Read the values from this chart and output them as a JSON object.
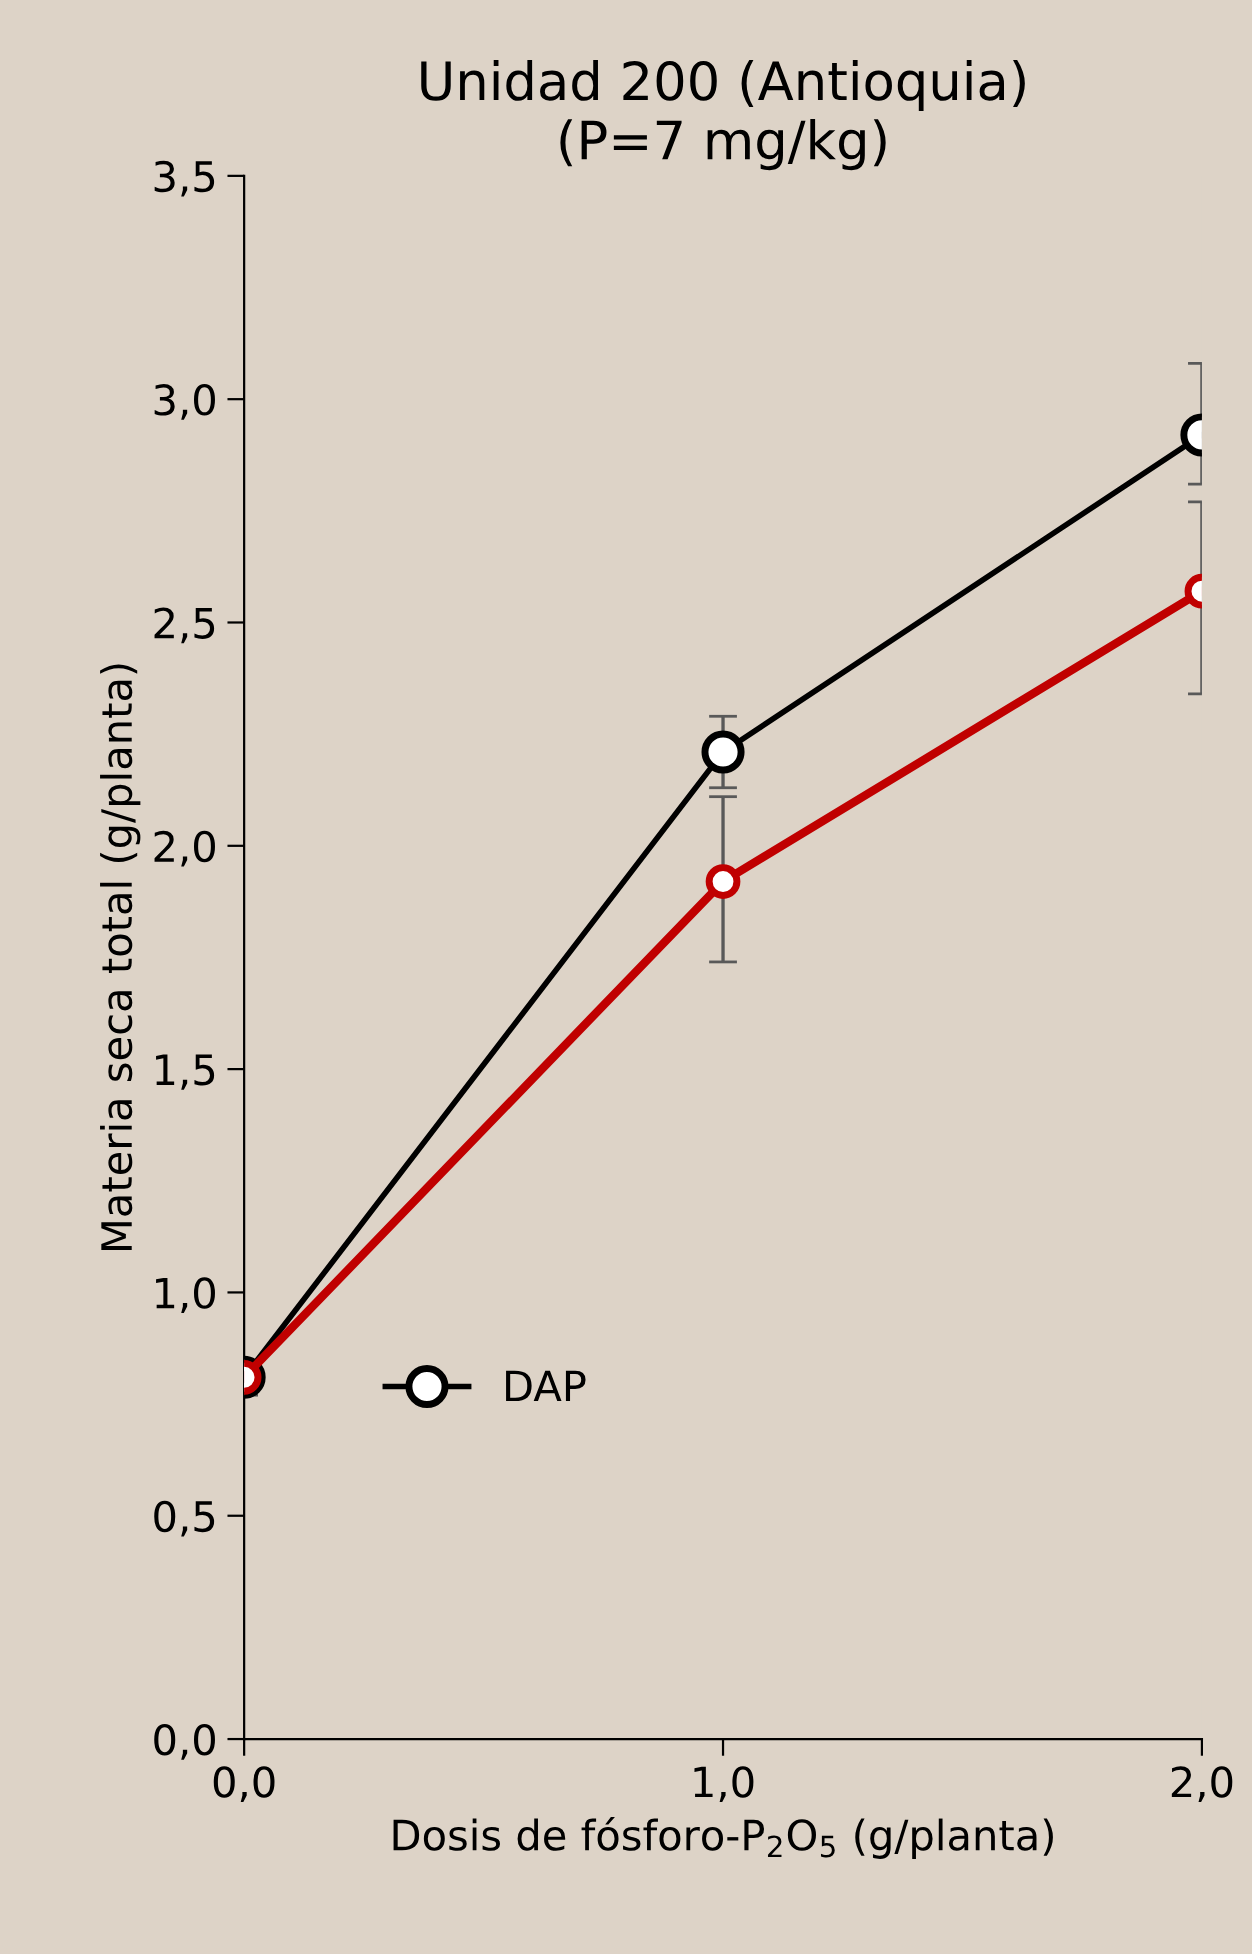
{
  "chart_data": {
    "type": "line",
    "title": "Unidad 200 (Antioquia)\n(P=7 mg/kg)",
    "xlabel": "Dosis de fósforo-P$_{2}$O$_{5}$ (g/planta)",
    "ylabel": "Materia seca total (g/planta)",
    "x": [
      0,
      1,
      2
    ],
    "series": [
      {
        "name": "DAP",
        "color": "#000000",
        "values": [
          0.81,
          2.21,
          2.92
        ],
        "errors": [
          [
            0.78,
            0.84
          ],
          [
            2.13,
            2.29
          ],
          [
            2.81,
            3.08
          ]
        ]
      },
      {
        "color": "#c00000",
        "values": [
          0.81,
          1.92,
          2.57
        ],
        "errors": [
          [
            0.77,
            0.84
          ],
          [
            1.74,
            2.11
          ],
          [
            2.34,
            2.77
          ]
        ]
      }
    ],
    "xlim": [
      0,
      2
    ],
    "xticks": [
      {
        "value": 0,
        "label": "0,0"
      },
      {
        "value": 1,
        "label": "1,0"
      },
      {
        "value": 2,
        "label": "2,0"
      }
    ],
    "ylim": [
      0,
      3.5
    ],
    "yticks": [
      {
        "value": 0,
        "label": "0,0"
      },
      {
        "value": 0.5,
        "label": "0,5"
      },
      {
        "value": 1,
        "label": "1,0"
      },
      {
        "value": 1.5,
        "label": "1,5"
      },
      {
        "value": 2,
        "label": "2,0"
      },
      {
        "value": 2.5,
        "label": "2,5"
      },
      {
        "value": 3,
        "label": "3,0"
      },
      {
        "value": 3.5,
        "label": "3,5"
      }
    ],
    "grid": false,
    "legend": "bottom left",
    "marker": "circle",
    "line_style": "solid"
  }
}
